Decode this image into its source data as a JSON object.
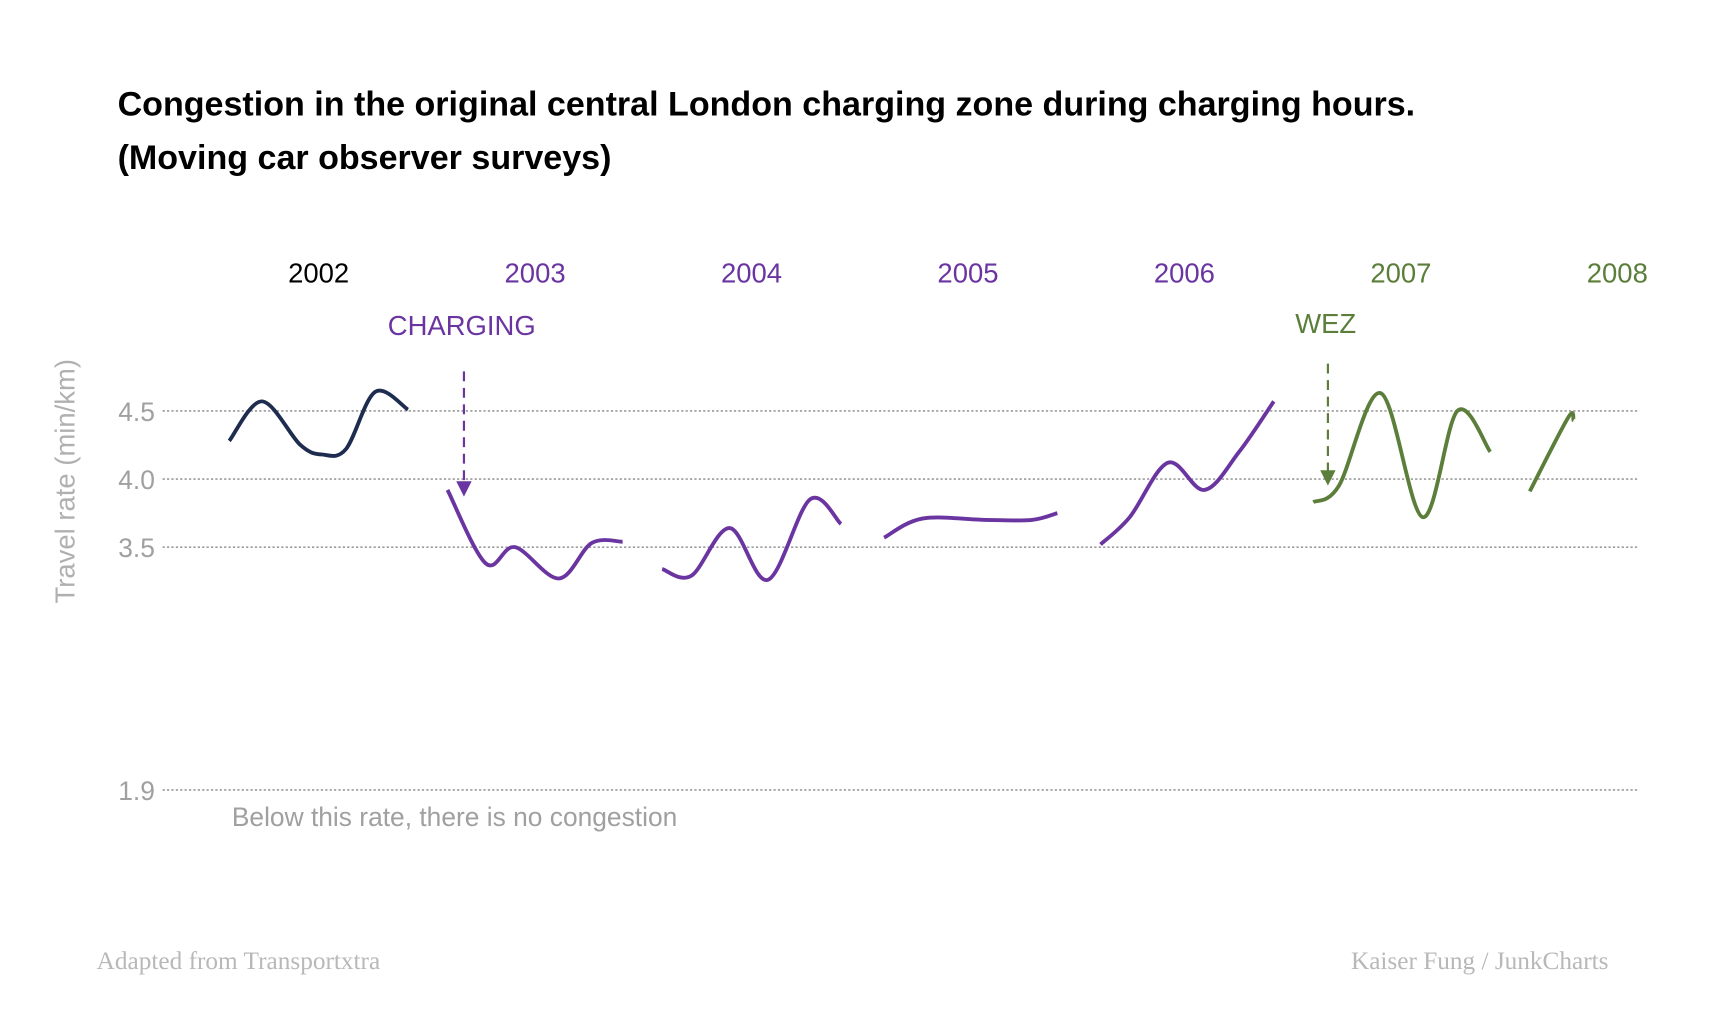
{
  "chart_data": {
    "type": "line",
    "title": "Congestion in the original central London charging zone during charging hours.",
    "subtitle": "(Moving car observer surveys)",
    "ylabel": "Travel rate (min/km)",
    "yticks": [
      "4.5",
      "4.0",
      "3.5",
      "1.9"
    ],
    "ylim": [
      1.9,
      4.7
    ],
    "grid": true,
    "threshold_note": "Below this rate, there is no congestion",
    "colors": {
      "pre": "#1e2d4f",
      "charging": "#6a35a0",
      "wez": "#5b7e3a",
      "axis": "#a0a0a0"
    },
    "years": [
      {
        "label": "2002",
        "color": "#000000"
      },
      {
        "label": "2003",
        "color": "#6a35a0"
      },
      {
        "label": "2004",
        "color": "#6a35a0"
      },
      {
        "label": "2005",
        "color": "#6a35a0"
      },
      {
        "label": "2006",
        "color": "#6a35a0"
      },
      {
        "label": "2007",
        "color": "#5b7e3a"
      },
      {
        "label": "2008",
        "color": "#5b7e3a"
      }
    ],
    "series": [
      {
        "year": 2002,
        "color": "#1e2d4f",
        "x": [
          2002.01,
          2002.19,
          2002.4,
          2002.52,
          2002.65,
          2002.81,
          2002.99
        ],
        "y": [
          4.28,
          4.57,
          4.25,
          4.18,
          4.22,
          4.64,
          4.51
        ]
      },
      {
        "year": 2003,
        "color": "#6a35a0",
        "x": [
          2003.02,
          2003.23,
          2003.39,
          2003.63,
          2003.81,
          2003.98
        ],
        "y": [
          3.92,
          3.38,
          3.5,
          3.27,
          3.53,
          3.54
        ]
      },
      {
        "year": 2004,
        "color": "#6a35a0",
        "x": [
          2004.01,
          2004.17,
          2004.38,
          2004.59,
          2004.82,
          2004.99
        ],
        "y": [
          3.34,
          3.29,
          3.64,
          3.26,
          3.85,
          3.67
        ]
      },
      {
        "year": 2005,
        "color": "#6a35a0",
        "x": [
          2005.04,
          2005.25,
          2005.6,
          2005.85,
          2005.99
        ],
        "y": [
          3.57,
          3.71,
          3.7,
          3.7,
          3.75
        ]
      },
      {
        "year": 2006,
        "color": "#6a35a0",
        "x": [
          2006.04,
          2006.2,
          2006.41,
          2006.61,
          2006.8,
          2006.99
        ],
        "y": [
          3.52,
          3.72,
          4.12,
          3.92,
          4.2,
          4.57
        ]
      },
      {
        "year": 2007,
        "color": "#5b7e3a",
        "x": [
          2007.02,
          2007.16,
          2007.39,
          2007.62,
          2007.81,
          2007.99
        ],
        "y": [
          3.83,
          3.95,
          4.63,
          3.72,
          4.5,
          4.2
        ]
      },
      {
        "year": 2008,
        "color": "#5b7e3a",
        "x": [
          2008.02,
          2008.23,
          2008.26
        ],
        "y": [
          3.91,
          4.45,
          4.43
        ]
      }
    ],
    "annotations": [
      {
        "label": "CHARGING",
        "x": 2003.11,
        "color": "#6a35a0"
      },
      {
        "label": "WEZ",
        "x": 2007.1,
        "color": "#5b7e3a"
      }
    ]
  },
  "footer": {
    "left": "Adapted from Transportxtra",
    "right": "Kaiser Fung  /  JunkCharts"
  }
}
